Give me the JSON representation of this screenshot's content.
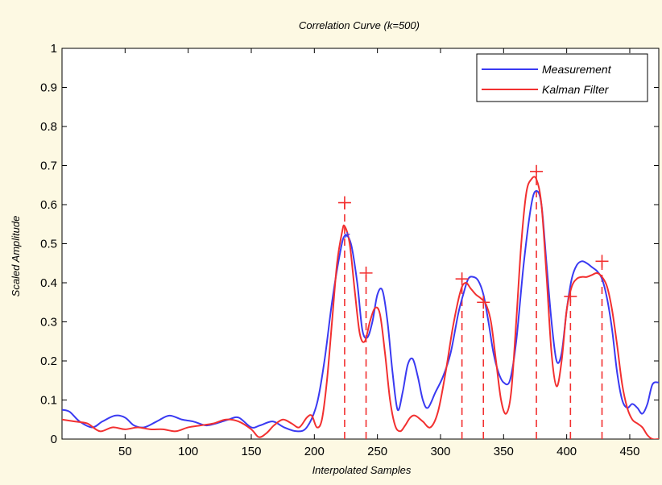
{
  "chart_data": {
    "type": "line",
    "title": "Correlation Curve (k=500)",
    "xlabel": "Interpolated Samples",
    "ylabel": "Scaled Amplitude",
    "xlim": [
      0,
      473
    ],
    "ylim": [
      0,
      1
    ],
    "xticks": [
      50,
      100,
      150,
      200,
      250,
      300,
      350,
      400,
      450
    ],
    "yticks": [
      0,
      0.1,
      0.2,
      0.3,
      0.4,
      0.5,
      0.6,
      0.7,
      0.8,
      0.9,
      1
    ],
    "grid": false,
    "legend_position": "top-right",
    "series": [
      {
        "name": "Measurement",
        "color": "#3a3af2",
        "x": [
          0,
          6,
          14,
          24,
          32,
          42,
          50,
          57,
          65,
          75,
          85,
          95,
          104,
          114,
          122,
          132,
          140,
          150,
          157,
          167,
          176,
          186,
          194,
          202,
          208,
          214,
          220,
          224,
          229,
          234,
          238,
          242,
          246,
          250,
          254,
          258,
          262,
          266,
          270,
          274,
          278,
          282,
          286,
          290,
          296,
          302,
          308,
          314,
          318,
          322,
          326,
          330,
          334,
          338,
          342,
          346,
          350,
          355,
          360,
          366,
          372,
          376,
          380,
          384,
          388,
          392,
          396,
          400,
          404,
          408,
          412,
          416,
          420,
          424,
          428,
          432,
          436,
          440,
          444,
          448,
          452,
          456,
          460,
          464,
          468,
          473
        ],
        "values": [
          0.075,
          0.07,
          0.045,
          0.03,
          0.045,
          0.06,
          0.055,
          0.035,
          0.03,
          0.045,
          0.06,
          0.05,
          0.045,
          0.035,
          0.04,
          0.05,
          0.055,
          0.03,
          0.035,
          0.045,
          0.03,
          0.02,
          0.03,
          0.09,
          0.2,
          0.35,
          0.47,
          0.52,
          0.5,
          0.4,
          0.28,
          0.26,
          0.3,
          0.37,
          0.38,
          0.3,
          0.17,
          0.075,
          0.12,
          0.19,
          0.205,
          0.16,
          0.1,
          0.08,
          0.12,
          0.16,
          0.22,
          0.32,
          0.37,
          0.41,
          0.415,
          0.405,
          0.37,
          0.3,
          0.22,
          0.17,
          0.145,
          0.15,
          0.25,
          0.45,
          0.6,
          0.635,
          0.6,
          0.45,
          0.3,
          0.2,
          0.22,
          0.33,
          0.41,
          0.445,
          0.455,
          0.45,
          0.44,
          0.43,
          0.41,
          0.36,
          0.28,
          0.17,
          0.1,
          0.08,
          0.09,
          0.08,
          0.065,
          0.09,
          0.14,
          0.145
        ]
      },
      {
        "name": "Kalman Filter",
        "color": "#f23030",
        "x": [
          0,
          10,
          20,
          30,
          40,
          50,
          60,
          70,
          80,
          90,
          100,
          110,
          120,
          130,
          140,
          150,
          156,
          162,
          168,
          175,
          182,
          188,
          194,
          198,
          202,
          206,
          210,
          214,
          218,
          222,
          224,
          228,
          232,
          236,
          240,
          244,
          248,
          252,
          256,
          260,
          264,
          268,
          272,
          276,
          280,
          286,
          292,
          298,
          304,
          310,
          316,
          320,
          324,
          328,
          332,
          336,
          340,
          344,
          348,
          352,
          356,
          360,
          364,
          368,
          372,
          376,
          380,
          384,
          388,
          392,
          396,
          400,
          404,
          408,
          412,
          416,
          420,
          424,
          428,
          432,
          436,
          440,
          444,
          448,
          452,
          456,
          460,
          464,
          468,
          473
        ],
        "values": [
          0.05,
          0.045,
          0.04,
          0.02,
          0.03,
          0.025,
          0.03,
          0.025,
          0.025,
          0.02,
          0.03,
          0.035,
          0.04,
          0.05,
          0.045,
          0.025,
          0.005,
          0.015,
          0.035,
          0.05,
          0.04,
          0.03,
          0.055,
          0.06,
          0.03,
          0.05,
          0.15,
          0.3,
          0.45,
          0.53,
          0.545,
          0.5,
          0.38,
          0.27,
          0.25,
          0.3,
          0.335,
          0.32,
          0.22,
          0.1,
          0.035,
          0.02,
          0.035,
          0.055,
          0.06,
          0.045,
          0.03,
          0.07,
          0.17,
          0.29,
          0.38,
          0.4,
          0.385,
          0.37,
          0.36,
          0.345,
          0.3,
          0.2,
          0.1,
          0.065,
          0.12,
          0.3,
          0.5,
          0.63,
          0.665,
          0.665,
          0.6,
          0.42,
          0.22,
          0.135,
          0.2,
          0.33,
          0.39,
          0.41,
          0.415,
          0.415,
          0.42,
          0.425,
          0.415,
          0.39,
          0.33,
          0.24,
          0.14,
          0.08,
          0.05,
          0.04,
          0.03,
          0.01,
          0.0,
          0.0
        ]
      }
    ],
    "peak_markers": {
      "color": "#f23030",
      "points": [
        {
          "x": 224,
          "y": 0.605
        },
        {
          "x": 241,
          "y": 0.425
        },
        {
          "x": 317,
          "y": 0.41
        },
        {
          "x": 334,
          "y": 0.35
        },
        {
          "x": 376,
          "y": 0.685
        },
        {
          "x": 403,
          "y": 0.365
        },
        {
          "x": 428,
          "y": 0.455
        }
      ]
    },
    "measurement_marker": {
      "x": 226,
      "y": 0.52,
      "symbol": "*",
      "color": "#3a3af2"
    }
  }
}
